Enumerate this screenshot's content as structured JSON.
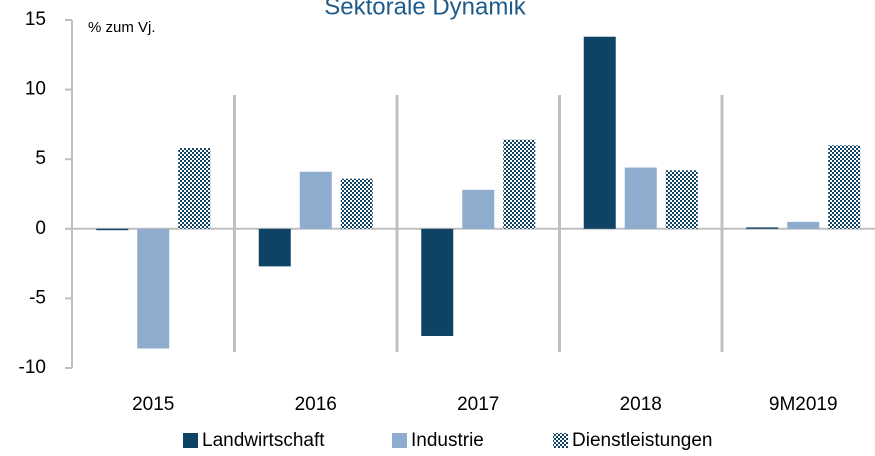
{
  "chart_data": {
    "type": "bar",
    "title": "Sektorale Dynamik",
    "ylabel": "% zum Vj.",
    "categories": [
      "2015",
      "2016",
      "2017",
      "2018",
      "9M2019"
    ],
    "series": [
      {
        "name": "Landwirtschaft",
        "color": "#0e4366",
        "values": [
          -0.1,
          -2.7,
          -7.7,
          13.8,
          0.1
        ]
      },
      {
        "name": "Industrie",
        "color": "#8eaccd",
        "values": [
          -8.6,
          4.1,
          2.8,
          4.4,
          0.5
        ]
      },
      {
        "name": "Dienstleistungen",
        "color": "#0e4366",
        "pattern": "checker",
        "values": [
          5.8,
          3.6,
          6.4,
          4.2,
          6.0
        ]
      }
    ],
    "ylim": [
      -10,
      15
    ],
    "yticks": [
      -10,
      -5,
      0,
      5,
      10,
      15
    ],
    "legend": "bottom"
  }
}
